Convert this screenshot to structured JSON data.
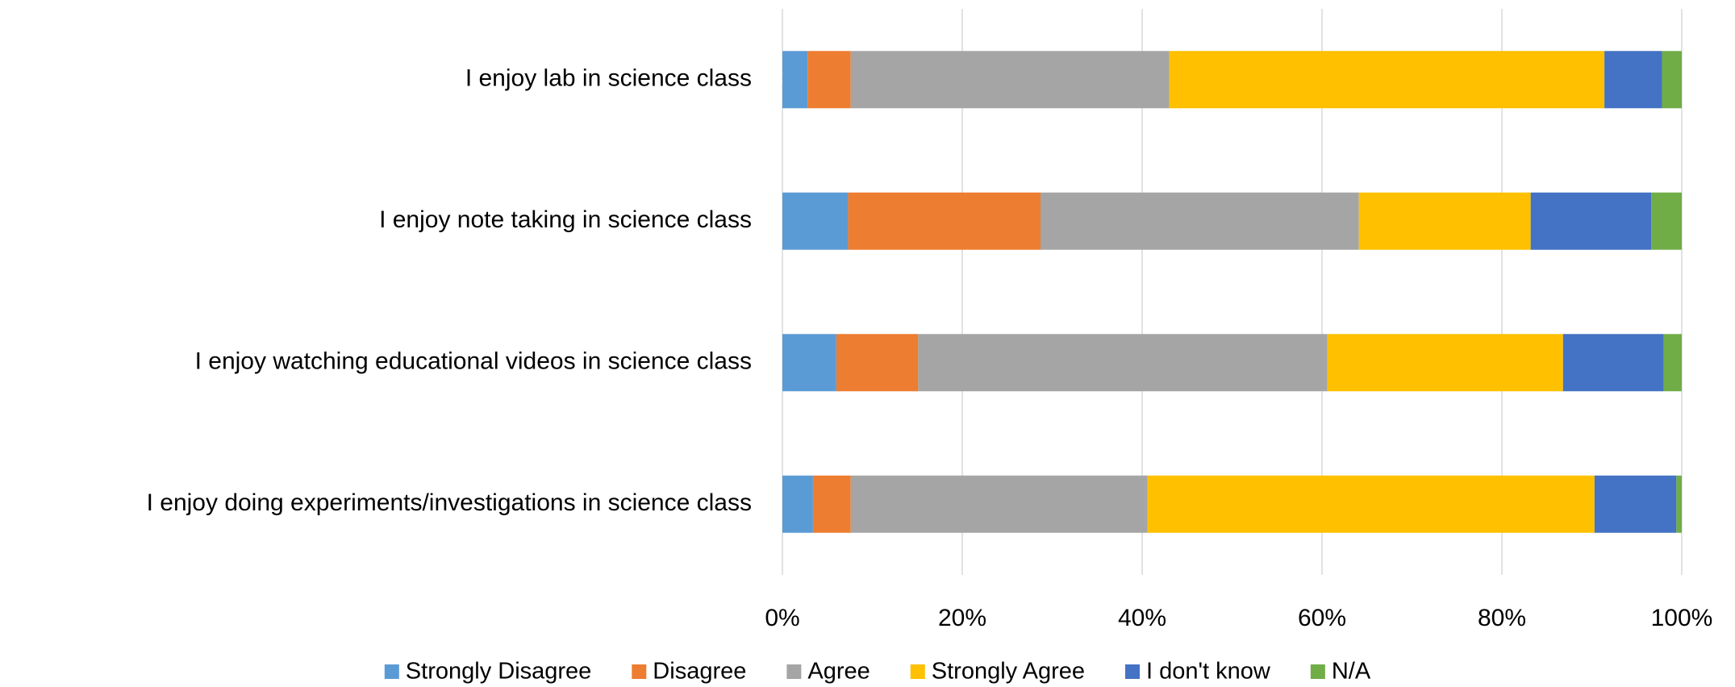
{
  "chart_data": {
    "type": "stacked_barh",
    "categories": [
      "I enjoy lab in science class",
      "I enjoy note taking in science class",
      "I enjoy watching educational videos in science class",
      "I enjoy doing experiments/investigations in science class"
    ],
    "series": [
      {
        "name": "Strongly Disagree",
        "color": "#5b9bd5",
        "values": [
          2.8,
          7.3,
          6.0,
          3.4
        ],
        "value_labels": [
          "3%",
          "7%",
          "6%",
          "3%"
        ]
      },
      {
        "name": "Disagree",
        "color": "#ed7d31",
        "values": [
          4.8,
          21.4,
          9.1,
          4.2
        ],
        "value_labels": [
          "5%",
          "21%",
          "9%",
          "4%"
        ]
      },
      {
        "name": "Agree",
        "color": "#a5a5a5",
        "values": [
          35.4,
          35.4,
          45.5,
          33.0
        ],
        "value_labels": [
          "35%",
          "35%",
          "46%",
          "33%"
        ]
      },
      {
        "name": "Strongly Agree",
        "color": "#ffc000",
        "values": [
          48.4,
          19.1,
          26.2,
          49.7
        ],
        "value_labels": [
          "48%",
          "19%",
          "26%",
          "50%"
        ]
      },
      {
        "name": "I don't know",
        "color": "#4472c4",
        "values": [
          6.4,
          13.4,
          11.2,
          9.1
        ],
        "value_labels": [
          "6%",
          "13%",
          "11%",
          "9%"
        ]
      },
      {
        "name": "N/A",
        "color": "#70ad47",
        "values": [
          2.2,
          3.4,
          2.0,
          0.6
        ],
        "value_labels": [
          "2%",
          "3%",
          "2%",
          "1%"
        ]
      }
    ],
    "xlim": [
      0,
      100
    ],
    "xticks": [
      {
        "value": 0,
        "label": "0%"
      },
      {
        "value": 20,
        "label": "20%"
      },
      {
        "value": 40,
        "label": "40%"
      },
      {
        "value": 60,
        "label": "60%"
      },
      {
        "value": 80,
        "label": "80%"
      },
      {
        "value": 100,
        "label": "100%"
      }
    ],
    "grid": true,
    "legend": "bottom"
  }
}
